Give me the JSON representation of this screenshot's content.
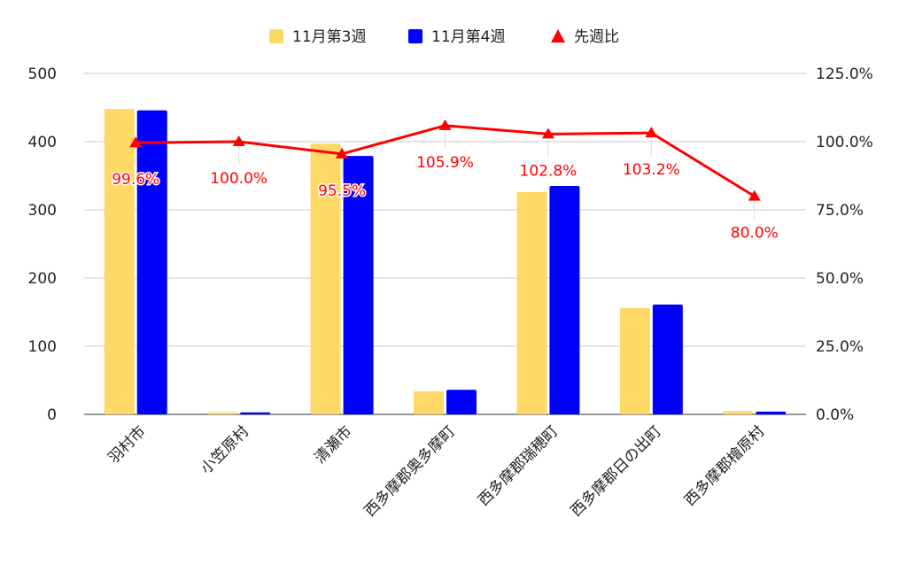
{
  "chart_data": {
    "type": "bar",
    "title": "",
    "categories": [
      "羽村市",
      "小笠原村",
      "清瀬市",
      "西多摩郡奥多摩町",
      "西多摩郡瑞穂町",
      "西多摩郡日の出町",
      "西多摩郡檜原村"
    ],
    "series": [
      {
        "name": "11月第3週",
        "type": "bar",
        "axis": "left",
        "color": "#FFD966",
        "values": [
          448,
          3,
          397,
          34,
          326,
          156,
          5
        ]
      },
      {
        "name": "11月第4週",
        "type": "bar",
        "axis": "left",
        "color": "#0000FF",
        "values": [
          446,
          3,
          379,
          36,
          335,
          161,
          4
        ]
      },
      {
        "name": "先週比",
        "type": "line",
        "axis": "right",
        "color": "#FF0000",
        "marker": "triangle",
        "values": [
          99.6,
          100.0,
          95.5,
          105.9,
          102.8,
          103.2,
          80.0
        ],
        "data_labels": [
          "99.6%",
          "100.0%",
          "95.5%",
          "105.9%",
          "102.8%",
          "103.2%",
          "80.0%"
        ]
      }
    ],
    "y_left": {
      "min": 0,
      "max": 500,
      "ticks": [
        "0",
        "100",
        "200",
        "300",
        "400",
        "500"
      ]
    },
    "y_right": {
      "min": 0,
      "max": 125,
      "ticks": [
        "0.0%",
        "25.0%",
        "50.0%",
        "75.0%",
        "100.0%",
        "125.0%"
      ]
    },
    "legend": {
      "position": "top",
      "labels": [
        "11月第3週",
        "11月第4週",
        "先週比"
      ]
    },
    "grid": true,
    "xlabel": "",
    "ylabel": ""
  }
}
